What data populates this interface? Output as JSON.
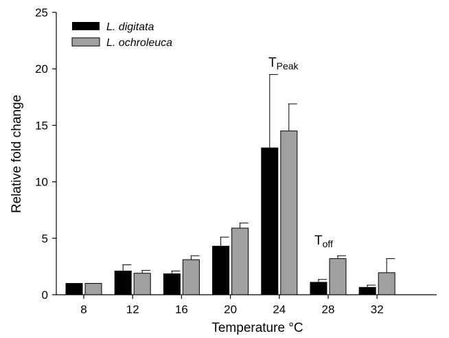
{
  "chart_data": {
    "type": "bar",
    "categories": [
      "8",
      "12",
      "16",
      "20",
      "24",
      "28",
      "32"
    ],
    "series": [
      {
        "name": "L. digitata",
        "color": "#000000",
        "values": [
          1.0,
          2.1,
          1.85,
          4.3,
          13.0,
          1.1,
          0.65
        ],
        "errors": [
          0.0,
          0.55,
          0.25,
          0.8,
          6.5,
          0.25,
          0.2
        ]
      },
      {
        "name": "L. ochroleuca",
        "color": "#a0a0a0",
        "values": [
          1.0,
          1.9,
          3.1,
          5.9,
          14.5,
          3.2,
          1.95
        ],
        "errors": [
          0.0,
          0.25,
          0.35,
          0.45,
          2.4,
          0.25,
          1.25
        ]
      }
    ],
    "xlabel": "Temperature °C",
    "ylabel": "Relative fold change",
    "ylim": [
      0,
      25
    ],
    "yticks": [
      "0",
      "5",
      "10",
      "15",
      "20",
      "25"
    ],
    "grid": false,
    "legend_position": "top-left",
    "annotations": [
      {
        "main": "T",
        "sub": "Peak",
        "category": "24"
      },
      {
        "main": "T",
        "sub": "off",
        "category": "28"
      }
    ]
  }
}
